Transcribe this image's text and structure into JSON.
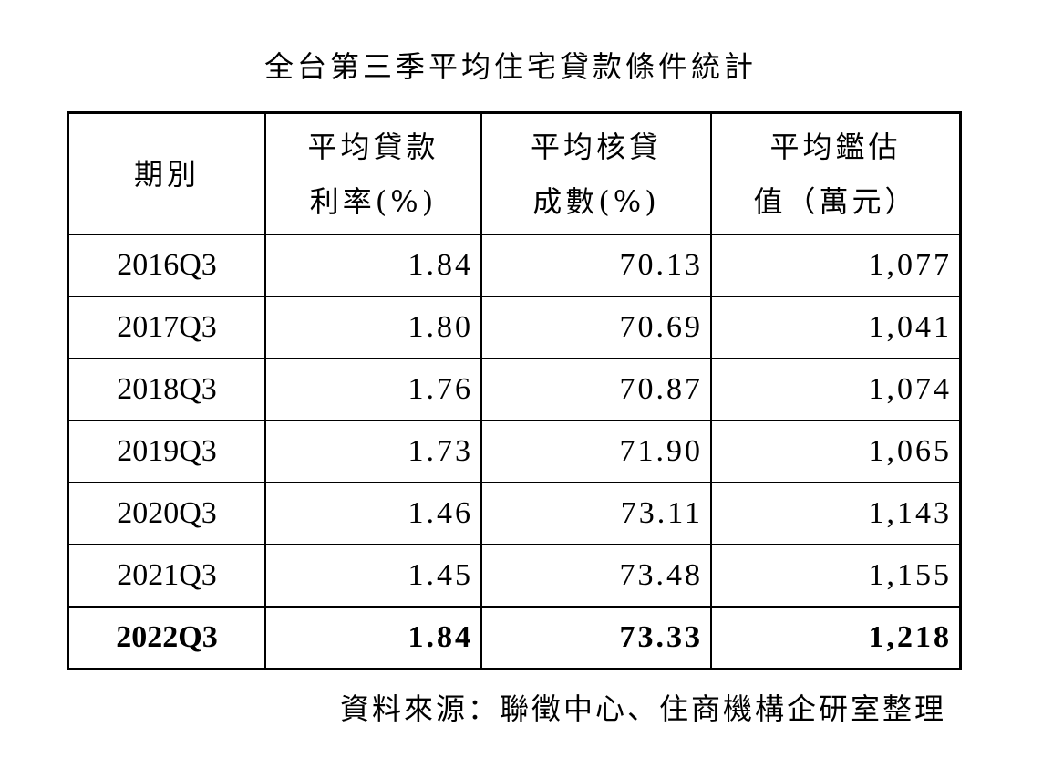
{
  "title": "全台第三季平均住宅貸款條件統計",
  "chart_data": {
    "type": "table",
    "title": "全台第三季平均住宅貸款條件統計",
    "columns": [
      {
        "line1": "期別",
        "line2": ""
      },
      {
        "line1": "平均貸款",
        "line2": "利率(%)"
      },
      {
        "line1": "平均核貸",
        "line2": "成數(%)"
      },
      {
        "line1": "平均鑑估",
        "line2": "值（萬元）"
      }
    ],
    "rows": [
      {
        "period": "2016Q3",
        "rate": "1.84",
        "ltv": "70.13",
        "value": "1,077",
        "bold": false
      },
      {
        "period": "2017Q3",
        "rate": "1.80",
        "ltv": "70.69",
        "value": "1,041",
        "bold": false
      },
      {
        "period": "2018Q3",
        "rate": "1.76",
        "ltv": "70.87",
        "value": "1,074",
        "bold": false
      },
      {
        "period": "2019Q3",
        "rate": "1.73",
        "ltv": "71.90",
        "value": "1,065",
        "bold": false
      },
      {
        "period": "2020Q3",
        "rate": "1.46",
        "ltv": "73.11",
        "value": "1,143",
        "bold": false
      },
      {
        "period": "2021Q3",
        "rate": "1.45",
        "ltv": "73.48",
        "value": "1,155",
        "bold": false
      },
      {
        "period": "2022Q3",
        "rate": "1.84",
        "ltv": "73.33",
        "value": "1,218",
        "bold": true
      }
    ]
  },
  "source": "資料來源：聯徵中心、住商機構企研室整理"
}
